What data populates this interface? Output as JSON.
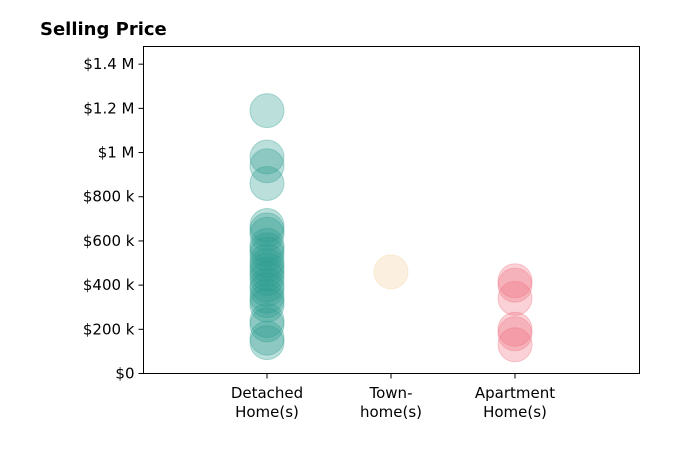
{
  "chart_data": {
    "type": "scatter",
    "title": "Selling Price",
    "xlabel": "",
    "ylabel": "",
    "ylim": [
      0,
      1480000
    ],
    "grid": false,
    "categories": [
      [
        "Detached",
        "Home(s)"
      ],
      [
        "Town-",
        "home(s)"
      ],
      [
        "Apartment",
        "Home(s)"
      ]
    ],
    "y_ticks": [
      {
        "value": 0,
        "label": "$0"
      },
      {
        "value": 200000,
        "label": "$200 k"
      },
      {
        "value": 400000,
        "label": "$400 k"
      },
      {
        "value": 600000,
        "label": "$600 k"
      },
      {
        "value": 800000,
        "label": "$800 k"
      },
      {
        "value": 1000000,
        "label": "$1 M"
      },
      {
        "value": 1200000,
        "label": "$1.2 M"
      },
      {
        "value": 1400000,
        "label": "$1.4 M"
      }
    ],
    "series": [
      {
        "category": 0,
        "color": "#2a9d8f",
        "values": [
          1190000,
          980000,
          940000,
          860000,
          670000,
          650000,
          630000,
          580000,
          560000,
          540000,
          510000,
          490000,
          470000,
          450000,
          430000,
          400000,
          380000,
          350000,
          330000,
          310000,
          240000,
          220000,
          160000,
          140000
        ]
      },
      {
        "category": 1,
        "color": "#f4d19b",
        "values": [
          460000
        ]
      },
      {
        "category": 2,
        "color": "#ef6f7e",
        "values": [
          420000,
          400000,
          340000,
          200000,
          180000,
          130000
        ]
      }
    ]
  }
}
